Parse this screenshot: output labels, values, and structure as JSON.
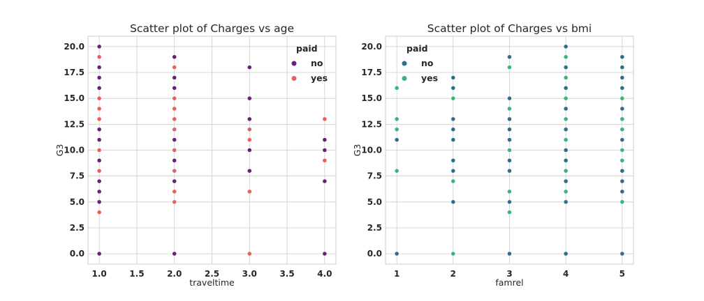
{
  "chart_data": [
    {
      "type": "scatter",
      "title": "Scatter plot of Charges vs age",
      "xlabel": "traveltime",
      "ylabel": "G3",
      "xlim": [
        0.85,
        4.15
      ],
      "ylim": [
        -1.0,
        21.0
      ],
      "xticks": [
        1.0,
        1.5,
        2.0,
        2.5,
        3.0,
        3.5,
        4.0
      ],
      "xtick_labels": [
        "1.0",
        "1.5",
        "2.0",
        "2.5",
        "3.0",
        "3.5",
        "4.0"
      ],
      "yticks": [
        0,
        2.5,
        5,
        7.5,
        10,
        12.5,
        15,
        17.5,
        20
      ],
      "ytick_labels": [
        "0.0",
        "2.5",
        "5.0",
        "7.5",
        "10.0",
        "12.5",
        "15.0",
        "17.5",
        "20.0"
      ],
      "grid": true,
      "legend": {
        "title": "paid",
        "position": "top-right"
      },
      "series": [
        {
          "name": "no",
          "color": "#6a1f7a",
          "points": [
            [
              1,
              20
            ],
            [
              1,
              18
            ],
            [
              1,
              17
            ],
            [
              1,
              16
            ],
            [
              1,
              13
            ],
            [
              1,
              12
            ],
            [
              1,
              11
            ],
            [
              1,
              10
            ],
            [
              1,
              9
            ],
            [
              1,
              7
            ],
            [
              1,
              6
            ],
            [
              1,
              5
            ],
            [
              1,
              0
            ],
            [
              2,
              19
            ],
            [
              2,
              17
            ],
            [
              2,
              16
            ],
            [
              2,
              13
            ],
            [
              2,
              12
            ],
            [
              2,
              11
            ],
            [
              2,
              10
            ],
            [
              2,
              9
            ],
            [
              2,
              8
            ],
            [
              2,
              7
            ],
            [
              2,
              0
            ],
            [
              3,
              18
            ],
            [
              3,
              15
            ],
            [
              3,
              13
            ],
            [
              3,
              11
            ],
            [
              3,
              10
            ],
            [
              3,
              8
            ],
            [
              4,
              11
            ],
            [
              4,
              10
            ],
            [
              4,
              7
            ],
            [
              4,
              0
            ]
          ]
        },
        {
          "name": "yes",
          "color": "#e8605b",
          "points": [
            [
              1,
              19
            ],
            [
              1,
              15
            ],
            [
              1,
              14
            ],
            [
              1,
              13
            ],
            [
              1,
              10
            ],
            [
              1,
              8
            ],
            [
              1,
              4
            ],
            [
              2,
              18
            ],
            [
              2,
              15
            ],
            [
              2,
              14
            ],
            [
              2,
              13
            ],
            [
              2,
              12
            ],
            [
              2,
              10
            ],
            [
              2,
              8
            ],
            [
              2,
              6
            ],
            [
              2,
              5
            ],
            [
              3,
              12
            ],
            [
              3,
              11
            ],
            [
              3,
              6
            ],
            [
              3,
              0
            ],
            [
              4,
              13
            ],
            [
              4,
              9
            ]
          ]
        }
      ]
    },
    {
      "type": "scatter",
      "title": "Scatter plot of Charges vs bmi",
      "xlabel": "famrel",
      "ylabel": "G3",
      "xlim": [
        0.8,
        5.2
      ],
      "ylim": [
        -1.0,
        21.0
      ],
      "xticks": [
        1,
        2,
        3,
        4,
        5
      ],
      "xtick_labels": [
        "1",
        "2",
        "3",
        "4",
        "5"
      ],
      "yticks": [
        0,
        2.5,
        5,
        7.5,
        10,
        12.5,
        15,
        17.5,
        20
      ],
      "ytick_labels": [
        "0.0",
        "2.5",
        "5.0",
        "7.5",
        "10.0",
        "12.5",
        "15.0",
        "17.5",
        "20.0"
      ],
      "grid": true,
      "legend": {
        "title": "paid",
        "position": "top-left"
      },
      "series": [
        {
          "name": "no",
          "color": "#2d6e8e",
          "points": [
            [
              1,
              11
            ],
            [
              1,
              0
            ],
            [
              2,
              17
            ],
            [
              2,
              16
            ],
            [
              2,
              13
            ],
            [
              2,
              12
            ],
            [
              2,
              11
            ],
            [
              2,
              9
            ],
            [
              2,
              8
            ],
            [
              2,
              5
            ],
            [
              3,
              19
            ],
            [
              3,
              15
            ],
            [
              3,
              13
            ],
            [
              3,
              12
            ],
            [
              3,
              11
            ],
            [
              3,
              9
            ],
            [
              3,
              8
            ],
            [
              3,
              5
            ],
            [
              3,
              0
            ],
            [
              4,
              20
            ],
            [
              4,
              18
            ],
            [
              4,
              16
            ],
            [
              4,
              14
            ],
            [
              4,
              12
            ],
            [
              4,
              10
            ],
            [
              4,
              9
            ],
            [
              4,
              7
            ],
            [
              4,
              5
            ],
            [
              4,
              0
            ],
            [
              5,
              19
            ],
            [
              5,
              18
            ],
            [
              5,
              17
            ],
            [
              5,
              16
            ],
            [
              5,
              14
            ],
            [
              5,
              11
            ],
            [
              5,
              8
            ],
            [
              5,
              7
            ],
            [
              5,
              6
            ],
            [
              5,
              0
            ]
          ]
        },
        {
          "name": "yes",
          "color": "#3bb37a",
          "points": [
            [
              1,
              16
            ],
            [
              1,
              13
            ],
            [
              1,
              12
            ],
            [
              1,
              8
            ],
            [
              2,
              15
            ],
            [
              2,
              7
            ],
            [
              2,
              0
            ],
            [
              3,
              18
            ],
            [
              3,
              14
            ],
            [
              3,
              10
            ],
            [
              3,
              6
            ],
            [
              3,
              4
            ],
            [
              4,
              19
            ],
            [
              4,
              17
            ],
            [
              4,
              15
            ],
            [
              4,
              13
            ],
            [
              4,
              11
            ],
            [
              4,
              8
            ],
            [
              4,
              6
            ],
            [
              5,
              15
            ],
            [
              5,
              13
            ],
            [
              5,
              12
            ],
            [
              5,
              10
            ],
            [
              5,
              9
            ],
            [
              5,
              5
            ]
          ]
        }
      ]
    }
  ]
}
